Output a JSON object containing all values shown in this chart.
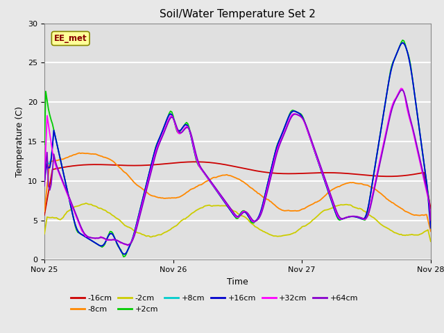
{
  "title": "Soil/Water Temperature Set 2",
  "xlabel": "Time",
  "ylabel": "Temperature (C)",
  "ylim": [
    0,
    30
  ],
  "xlim": [
    0,
    288
  ],
  "xtick_positions": [
    0,
    96,
    192,
    288
  ],
  "xtick_labels": [
    "Nov 25",
    "Nov 26",
    "Nov 27",
    "Nov 28"
  ],
  "ytick_positions": [
    0,
    5,
    10,
    15,
    20,
    25,
    30
  ],
  "fig_bg_color": "#e8e8e8",
  "plot_bg_color": "#e0e0e0",
  "grid_color": "#ffffff",
  "watermark_text": "EE_met",
  "watermark_bg": "#ffff99",
  "watermark_border": "#888800",
  "watermark_text_color": "#880000",
  "series_colors": {
    "-16cm": "#cc0000",
    "-8cm": "#ff8800",
    "-2cm": "#cccc00",
    "+2cm": "#00cc00",
    "+8cm": "#00cccc",
    "+16cm": "#0000cc",
    "+32cm": "#ff00ff",
    "+64cm": "#8800cc"
  }
}
